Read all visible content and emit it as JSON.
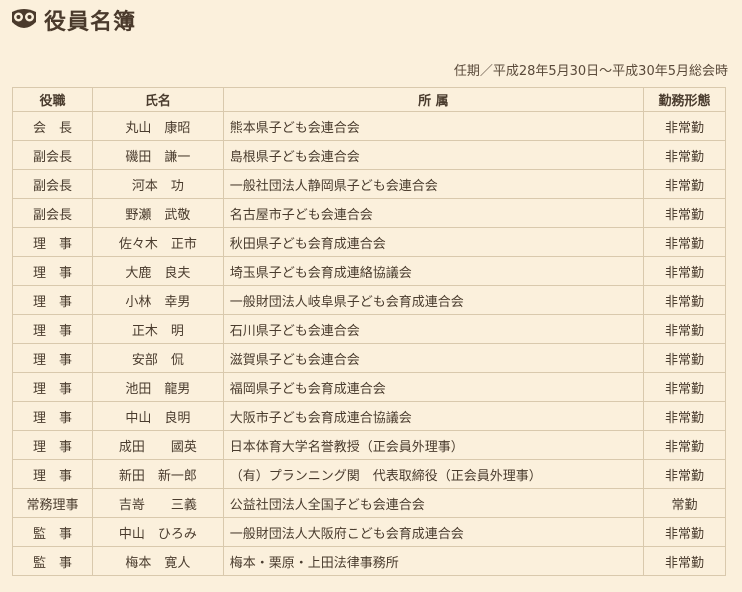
{
  "page": {
    "title": "役員名簿",
    "term": "任期／平成28年5月30日～平成30年5月総会時"
  },
  "table": {
    "headers": [
      "役職",
      "氏名",
      "所 属",
      "勤務形態"
    ],
    "rows": [
      {
        "role": "会　長",
        "name": "丸山　康昭",
        "affiliation": "熊本県子ども会連合会",
        "work": "非常勤"
      },
      {
        "role": "副会長",
        "name": "磯田　謙一",
        "affiliation": "島根県子ども会連合会",
        "work": "非常勤"
      },
      {
        "role": "副会長",
        "name": "河本　功",
        "affiliation": "一般社団法人静岡県子ども会連合会",
        "work": "非常勤"
      },
      {
        "role": "副会長",
        "name": "野瀬　武敬",
        "affiliation": "名古屋市子ども会連合会",
        "work": "非常勤"
      },
      {
        "role": "理　事",
        "name": "佐々木　正市",
        "affiliation": "秋田県子ども会育成連合会",
        "work": "非常勤"
      },
      {
        "role": "理　事",
        "name": "大鹿　良夫",
        "affiliation": "埼玉県子ども会育成連絡協議会",
        "work": "非常勤"
      },
      {
        "role": "理　事",
        "name": "小林　幸男",
        "affiliation": "一般財団法人岐阜県子ども会育成連合会",
        "work": "非常勤"
      },
      {
        "role": "理　事",
        "name": "正木　明",
        "affiliation": "石川県子ども会連合会",
        "work": "非常勤"
      },
      {
        "role": "理　事",
        "name": "安部　侃",
        "affiliation": "滋賀県子ども会連合会",
        "work": "非常勤"
      },
      {
        "role": "理　事",
        "name": "池田　龍男",
        "affiliation": "福岡県子ども会育成連合会",
        "work": "非常勤"
      },
      {
        "role": "理　事",
        "name": "中山　良明",
        "affiliation": "大阪市子ども会育成連合協議会",
        "work": "非常勤"
      },
      {
        "role": "理　事",
        "name": "成田　　國英",
        "affiliation": "日本体育大学名誉教授（正会員外理事）",
        "work": "非常勤"
      },
      {
        "role": "理　事",
        "name": "新田　新一郎",
        "affiliation": "（有）プランニング関　代表取締役（正会員外理事）",
        "work": "非常勤"
      },
      {
        "role": "常務理事",
        "name": "吉嵜　　三義",
        "affiliation": "公益社団法人全国子ども会連合会",
        "work": "常勤"
      },
      {
        "role": "監　事",
        "name": "中山　ひろみ",
        "affiliation": "一般財団法人大阪府こども会育成連合会",
        "work": "非常勤"
      },
      {
        "role": "監　事",
        "name": "梅本　寛人",
        "affiliation": "梅本・栗原・上田法律事務所",
        "work": "非常勤"
      }
    ]
  }
}
